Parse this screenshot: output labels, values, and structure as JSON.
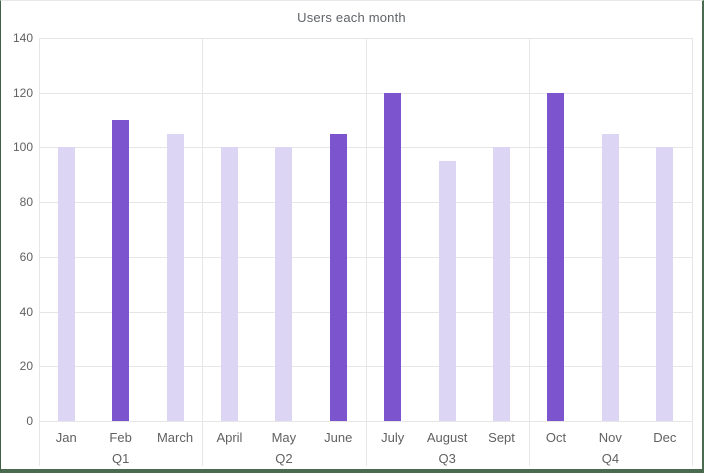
{
  "chart_data": {
    "type": "bar",
    "title": "Users each month",
    "categories": [
      "Jan",
      "Feb",
      "March",
      "April",
      "May",
      "June",
      "July",
      "August",
      "Sept",
      "Oct",
      "Nov",
      "Dec"
    ],
    "values": [
      100,
      110,
      105,
      100,
      100,
      105,
      120,
      95,
      100,
      120,
      105,
      100
    ],
    "emphasis": [
      false,
      true,
      false,
      false,
      false,
      true,
      true,
      false,
      false,
      true,
      false,
      false
    ],
    "groups": [
      {
        "label": "Q1",
        "categories": [
          "Jan",
          "Feb",
          "March"
        ]
      },
      {
        "label": "Q2",
        "categories": [
          "April",
          "May",
          "June"
        ]
      },
      {
        "label": "Q3",
        "categories": [
          "July",
          "August",
          "Sept"
        ]
      },
      {
        "label": "Q4",
        "categories": [
          "Oct",
          "Nov",
          "Dec"
        ]
      }
    ],
    "xlabel": "",
    "ylabel": "",
    "yticks": [
      0,
      20,
      40,
      60,
      80,
      100,
      120,
      140
    ],
    "ylim": [
      0,
      140
    ],
    "grid": true,
    "legend": false,
    "colors": {
      "bar_default": "#ddd5f4",
      "bar_emphasis": "#7c55ce",
      "gridline": "#e6e6e6",
      "axis_text": "#616161",
      "title_text": "#5f6368",
      "frame_border": "#4a6b50",
      "background": "#ffffff"
    }
  }
}
